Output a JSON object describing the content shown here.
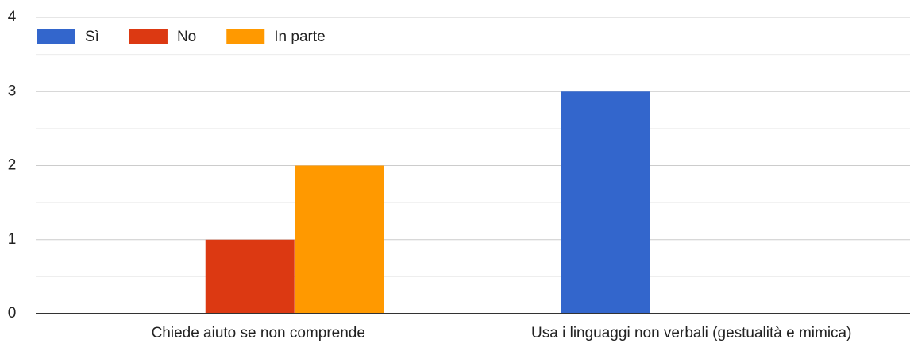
{
  "chart_data": {
    "type": "bar",
    "categories": [
      "Chiede aiuto se non comprende",
      "Usa i linguaggi non verbali (gestualità e mimica)"
    ],
    "series": [
      {
        "name": "Sì",
        "color": "#3366cc",
        "values": [
          0,
          3
        ]
      },
      {
        "name": "No",
        "color": "#dc3912",
        "values": [
          1,
          0
        ]
      },
      {
        "name": "In parte",
        "color": "#ff9900",
        "values": [
          2,
          0
        ]
      }
    ],
    "ylim": [
      0,
      4
    ],
    "yticks": [
      0,
      1,
      2,
      3,
      4
    ],
    "minor_yticks": [
      0.5,
      1.5,
      2.5,
      3.5
    ],
    "grid": true,
    "legend": "top"
  }
}
